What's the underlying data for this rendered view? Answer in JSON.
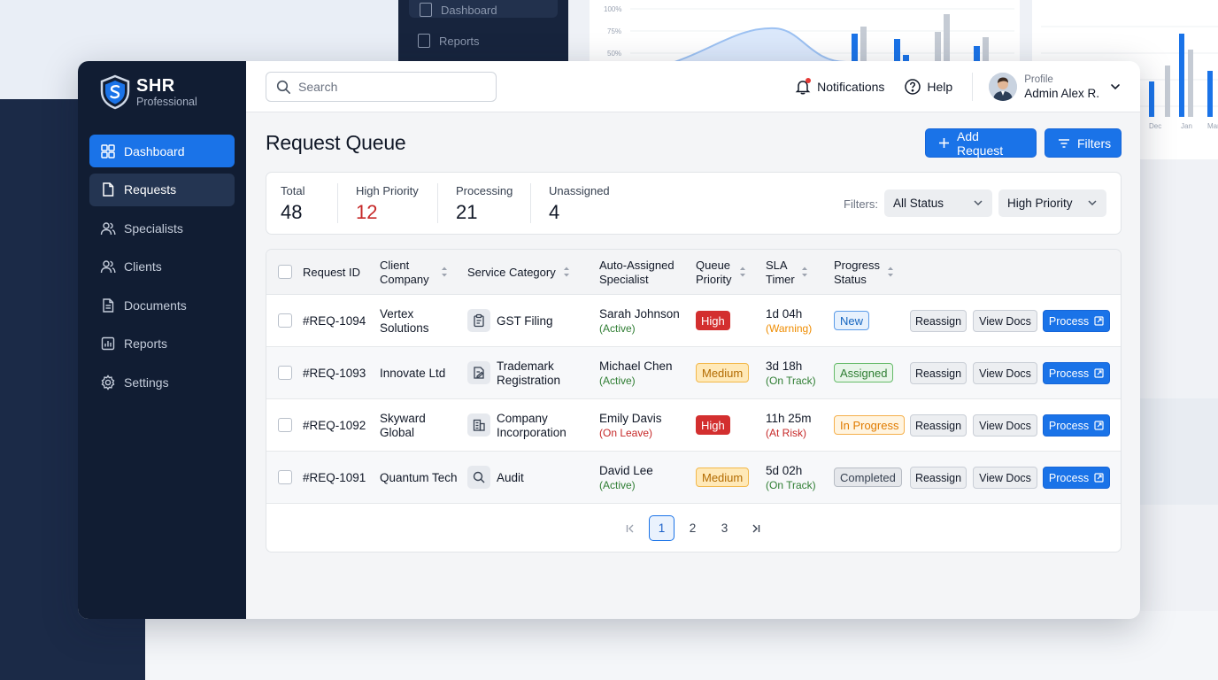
{
  "background": {
    "sidebar_items": [
      "Dashboard",
      "Reports"
    ],
    "chart_ticks": [
      "100%",
      "75%",
      "50%"
    ],
    "side_labels": [
      "Dec",
      "Jan",
      "Mar"
    ]
  },
  "brand": {
    "name": "SHR",
    "subtitle": "Professional",
    "accent": "#1a73e8"
  },
  "sidebar": {
    "items": [
      {
        "label": "Dashboard",
        "icon": "grid-icon",
        "state": "active"
      },
      {
        "label": "Requests",
        "icon": "document-icon",
        "state": "hover"
      },
      {
        "label": "Specialists",
        "icon": "users-icon",
        "state": ""
      },
      {
        "label": "Clients",
        "icon": "users-icon",
        "state": ""
      },
      {
        "label": "Documents",
        "icon": "file-text-icon",
        "state": ""
      },
      {
        "label": "Reports",
        "icon": "bar-chart-icon",
        "state": ""
      },
      {
        "label": "Settings",
        "icon": "gear-icon",
        "state": ""
      }
    ]
  },
  "topbar": {
    "search_placeholder": "Search",
    "notifications_label": "Notifications",
    "help_label": "Help",
    "profile_label": "Profile",
    "profile_name": "Admin Alex R."
  },
  "page": {
    "title": "Request Queue",
    "add_request_label": "Add Request",
    "filters_label": "Filters"
  },
  "stats": {
    "items": [
      {
        "label": "Total",
        "value": "48"
      },
      {
        "label": "High Priority",
        "value": "12"
      },
      {
        "label": "Processing",
        "value": "21"
      },
      {
        "label": "Unassigned",
        "value": "4"
      }
    ],
    "filters_label": "Filters:",
    "status_filter": "All Status",
    "priority_filter": "High Priority"
  },
  "table": {
    "headers": {
      "request_id": "Request ID",
      "client_line1": "Client",
      "client_line2": "Company",
      "service": "Service Category",
      "specialist_line1": "Auto-Assigned",
      "specialist_line2": "Specialist",
      "priority_line1": "Queue",
      "priority_line2": "Priority",
      "sla_line1": "SLA",
      "sla_line2": "Timer",
      "status_line1": "Progress",
      "status_line2": "Status"
    },
    "actions": {
      "reassign": "Reassign",
      "view_docs": "View Docs",
      "process": "Process"
    },
    "rows": [
      {
        "id": "#REQ-1094",
        "client_line1": "Vertex",
        "client_line2": "Solutions",
        "service_line1": "GST Filing",
        "service_line2": "",
        "service_icon": "clipboard-icon",
        "specialist": "Sarah Johnson",
        "specialist_status": "(Active)",
        "specialist_tone": "green",
        "priority": "High",
        "priority_tone": "high",
        "sla": "1d 04h",
        "sla_note": "(Warning)",
        "sla_tone": "orange",
        "status": "New",
        "status_tone": "new"
      },
      {
        "id": "#REQ-1093",
        "client_line1": "Innovate Ltd",
        "client_line2": "",
        "service_line1": "Trademark",
        "service_line2": "Registration",
        "service_icon": "edit-document-icon",
        "specialist": "Michael Chen",
        "specialist_status": "(Active)",
        "specialist_tone": "green",
        "priority": "Medium",
        "priority_tone": "medium",
        "sla": "3d 18h",
        "sla_note": "(On Track)",
        "sla_tone": "green",
        "status": "Assigned",
        "status_tone": "assigned"
      },
      {
        "id": "#REQ-1092",
        "client_line1": "Skyward",
        "client_line2": "Global",
        "service_line1": "Company",
        "service_line2": "Incorporation",
        "service_icon": "building-icon",
        "specialist": "Emily Davis",
        "specialist_status": "(On Leave)",
        "specialist_tone": "red",
        "priority": "High",
        "priority_tone": "high",
        "sla": "11h 25m",
        "sla_note": "(At Risk)",
        "sla_tone": "red",
        "status": "In Progress",
        "status_tone": "inprogress"
      },
      {
        "id": "#REQ-1091",
        "client_line1": "Quantum Tech",
        "client_line2": "",
        "service_line1": "Audit",
        "service_line2": "",
        "service_icon": "search-icon",
        "specialist": "David Lee",
        "specialist_status": "(Active)",
        "specialist_tone": "green",
        "priority": "Medium",
        "priority_tone": "medium",
        "sla": "5d 02h",
        "sla_note": "(On Track)",
        "sla_tone": "green",
        "status": "Completed",
        "status_tone": "completed"
      }
    ]
  },
  "pagination": {
    "pages": [
      "1",
      "2",
      "3"
    ],
    "current": "1"
  }
}
